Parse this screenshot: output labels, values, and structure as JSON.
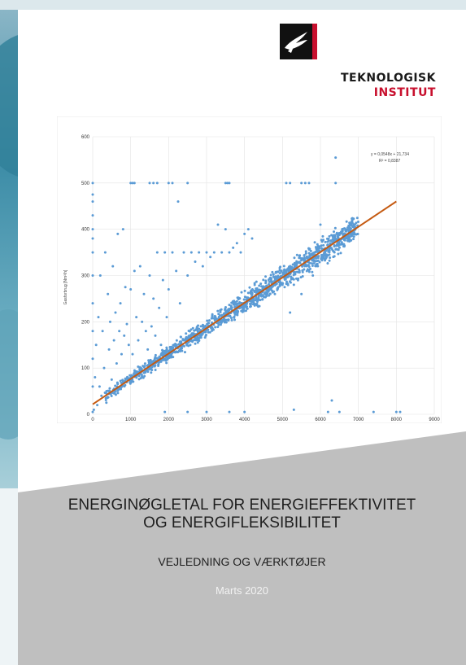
{
  "logo": {
    "line1": "TEKNOLOGISK",
    "line2": "INSTITUT",
    "icon": "bird-logo-icon"
  },
  "title": {
    "line1": "ENERGINØGLETAL FOR ENERGIEFFEKTIVITET",
    "line2": "OG ENERGIFLEKSIBILITET"
  },
  "subtitle": "VEJLEDNING OG VÆRKTØJER",
  "date": "Marts 2020",
  "colors": {
    "points": "#5b9bd5",
    "trendline": "#c55a11",
    "footer": "#bfbfbf",
    "logo_red": "#c8102e"
  },
  "chart_data": {
    "type": "scatter",
    "title": "",
    "xlabel": "",
    "ylabel": "Gasforbrug [Nm³/h]",
    "xlim": [
      0,
      9000
    ],
    "ylim": [
      0,
      600
    ],
    "xticks": [
      "0",
      "1000",
      "2000",
      "3000",
      "4000",
      "5000",
      "6000",
      "7000",
      "8000",
      "9000"
    ],
    "yticks": [
      "0",
      "100",
      "200",
      "300",
      "400",
      "500",
      "600"
    ],
    "grid": true,
    "trendline": {
      "equation": "y = 0,0548x + 21,734",
      "r2": "R² = 0,8387",
      "slope": 0.0548,
      "intercept": 21.734,
      "x_range": [
        0,
        8000
      ]
    },
    "series": [
      {
        "points": [
          [
            0,
            5
          ],
          [
            0,
            60
          ],
          [
            0,
            120
          ],
          [
            0,
            180
          ],
          [
            0,
            240
          ],
          [
            0,
            300
          ],
          [
            0,
            350
          ],
          [
            0,
            380
          ],
          [
            0,
            400
          ],
          [
            0,
            430
          ],
          [
            0,
            460
          ],
          [
            0,
            475
          ],
          [
            0,
            500
          ],
          [
            30,
            10
          ],
          [
            60,
            80
          ],
          [
            90,
            150
          ],
          [
            120,
            20
          ],
          [
            150,
            210
          ],
          [
            180,
            60
          ],
          [
            200,
            300
          ],
          [
            230,
            40
          ],
          [
            260,
            180
          ],
          [
            300,
            100
          ],
          [
            330,
            350
          ],
          [
            360,
            25
          ],
          [
            400,
            260
          ],
          [
            430,
            140
          ],
          [
            460,
            200
          ],
          [
            500,
            75
          ],
          [
            530,
            320
          ],
          [
            560,
            160
          ],
          [
            600,
            220
          ],
          [
            630,
            110
          ],
          [
            660,
            390
          ],
          [
            700,
            180
          ],
          [
            730,
            240
          ],
          [
            760,
            130
          ],
          [
            800,
            400
          ],
          [
            830,
            170
          ],
          [
            860,
            275
          ],
          [
            900,
            195
          ],
          [
            950,
            150
          ],
          [
            1000,
            270
          ],
          [
            1050,
            130
          ],
          [
            1100,
            310
          ],
          [
            1150,
            210
          ],
          [
            1200,
            160
          ],
          [
            1250,
            320
          ],
          [
            1300,
            200
          ],
          [
            1350,
            260
          ],
          [
            1400,
            180
          ],
          [
            1450,
            140
          ],
          [
            1500,
            300
          ],
          [
            1550,
            190
          ],
          [
            1600,
            250
          ],
          [
            1650,
            170
          ],
          [
            1700,
            350
          ],
          [
            1750,
            230
          ],
          [
            1800,
            150
          ],
          [
            1850,
            290
          ],
          [
            1900,
            350
          ],
          [
            1950,
            210
          ],
          [
            2000,
            270
          ],
          [
            2100,
            350
          ],
          [
            2200,
            310
          ],
          [
            2250,
            460
          ],
          [
            2300,
            240
          ],
          [
            2400,
            350
          ],
          [
            2500,
            300
          ],
          [
            2600,
            350
          ],
          [
            2700,
            330
          ],
          [
            2800,
            350
          ],
          [
            2900,
            320
          ],
          [
            3000,
            350
          ],
          [
            3100,
            340
          ],
          [
            3200,
            350
          ],
          [
            3300,
            410
          ],
          [
            3400,
            350
          ],
          [
            3500,
            400
          ],
          [
            3600,
            350
          ],
          [
            3700,
            360
          ],
          [
            3800,
            370
          ],
          [
            3900,
            350
          ],
          [
            4000,
            390
          ],
          [
            4100,
            400
          ],
          [
            4200,
            380
          ],
          [
            4500,
            270
          ],
          [
            4800,
            260
          ],
          [
            5000,
            280
          ],
          [
            5200,
            220
          ],
          [
            5300,
            280
          ],
          [
            5500,
            260
          ],
          [
            5800,
            300
          ],
          [
            6000,
            410
          ],
          [
            6200,
            5
          ],
          [
            6300,
            30
          ],
          [
            6400,
            555
          ],
          [
            6500,
            5
          ],
          [
            7400,
            5
          ],
          [
            8000,
            5
          ],
          [
            8100,
            5
          ],
          [
            1000,
            500
          ],
          [
            1050,
            500
          ],
          [
            1100,
            500
          ],
          [
            1500,
            500
          ],
          [
            1600,
            500
          ],
          [
            1700,
            500
          ],
          [
            2000,
            500
          ],
          [
            2100,
            500
          ],
          [
            2500,
            500
          ],
          [
            3500,
            500
          ],
          [
            3550,
            500
          ],
          [
            3600,
            500
          ],
          [
            5100,
            500
          ],
          [
            5200,
            500
          ],
          [
            5500,
            500
          ],
          [
            5600,
            500
          ],
          [
            5700,
            500
          ],
          [
            6400,
            500
          ],
          [
            1900,
            5
          ],
          [
            2500,
            5
          ],
          [
            3000,
            5
          ],
          [
            3600,
            5
          ],
          [
            4000,
            5
          ],
          [
            5300,
            10
          ]
        ],
        "band": {
          "x_range": [
            300,
            7000
          ],
          "slope": 0.0548,
          "intercept": 21.734,
          "spread": 18,
          "count": 1400
        }
      }
    ]
  }
}
